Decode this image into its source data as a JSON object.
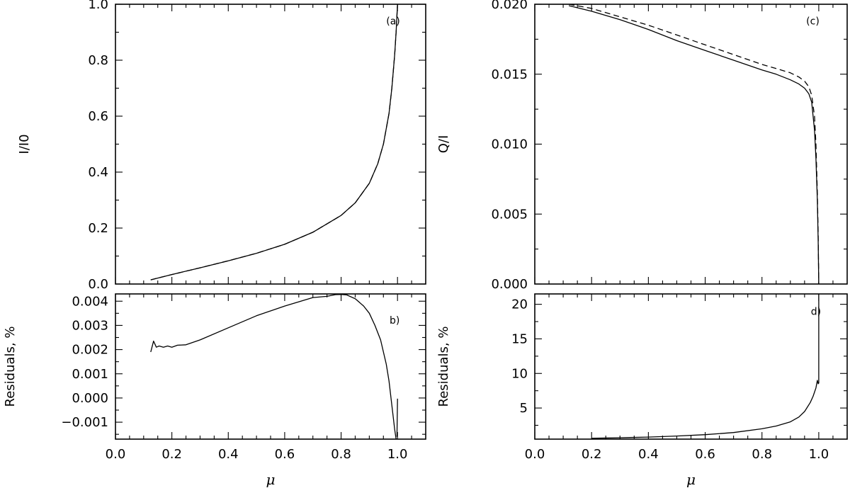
{
  "chart_data": [
    {
      "id": "a",
      "type": "line",
      "label": "(a)",
      "xlabel": "",
      "ylabel": "I/I0",
      "xlim": [
        0,
        1.1
      ],
      "ylim": [
        0,
        1.0
      ],
      "xticks": [
        0.0,
        0.2,
        0.4,
        0.6,
        0.8,
        1.0
      ],
      "xticklabels": [],
      "yticks": [
        0.0,
        0.2,
        0.4,
        0.6,
        0.8,
        1.0
      ],
      "yticklabels": [
        "0.0",
        "0.2",
        "0.4",
        "0.6",
        "0.8",
        "1.0"
      ],
      "series": [
        {
          "style": "solid",
          "x": [
            0.125,
            0.2,
            0.3,
            0.4,
            0.5,
            0.6,
            0.7,
            0.8,
            0.85,
            0.9,
            0.93,
            0.95,
            0.97,
            0.98,
            0.99,
            0.995,
            1.0
          ],
          "y": [
            0.015,
            0.034,
            0.058,
            0.083,
            0.11,
            0.142,
            0.185,
            0.245,
            0.29,
            0.36,
            0.43,
            0.5,
            0.61,
            0.7,
            0.82,
            0.9,
            1.0
          ]
        },
        {
          "style": "dashed",
          "x": [
            0.125,
            0.2,
            0.3,
            0.4,
            0.5,
            0.6,
            0.7,
            0.8,
            0.85,
            0.9,
            0.93,
            0.95,
            0.97,
            0.98,
            0.99,
            0.995,
            1.0
          ],
          "y": [
            0.015,
            0.034,
            0.058,
            0.083,
            0.11,
            0.142,
            0.185,
            0.245,
            0.29,
            0.36,
            0.43,
            0.5,
            0.61,
            0.7,
            0.82,
            0.9,
            1.0
          ]
        }
      ]
    },
    {
      "id": "b",
      "type": "line",
      "label": "b)",
      "xlabel": "μ",
      "ylabel": "Residuals, %",
      "xlim": [
        0,
        1.1
      ],
      "ylim": [
        -0.0017,
        0.0043
      ],
      "xticks": [
        0.0,
        0.2,
        0.4,
        0.6,
        0.8,
        1.0
      ],
      "xticklabels": [
        "0.0",
        "0.2",
        "0.4",
        "0.6",
        "0.8",
        "1.0"
      ],
      "yticks": [
        -0.001,
        0.0,
        0.001,
        0.002,
        0.003,
        0.004
      ],
      "yticklabels": [
        "−0.001",
        "0.000",
        "0.001",
        "0.002",
        "0.003",
        "0.004"
      ],
      "series": [
        {
          "style": "solid",
          "x": [
            0.125,
            0.135,
            0.145,
            0.155,
            0.17,
            0.185,
            0.2,
            0.22,
            0.25,
            0.3,
            0.4,
            0.5,
            0.6,
            0.7,
            0.75,
            0.78,
            0.8,
            0.82,
            0.85,
            0.88,
            0.9,
            0.92,
            0.94,
            0.96,
            0.97,
            0.98,
            0.99,
            0.995
          ],
          "y": [
            0.0019,
            0.00235,
            0.0021,
            0.00215,
            0.0021,
            0.00215,
            0.0021,
            0.00218,
            0.0022,
            0.0024,
            0.0029,
            0.0034,
            0.0038,
            0.00415,
            0.0042,
            0.00427,
            0.00428,
            0.00426,
            0.0041,
            0.0038,
            0.0035,
            0.003,
            0.0024,
            0.0014,
            0.0007,
            -0.0003,
            -0.0013,
            -0.0017
          ]
        },
        {
          "style": "solid",
          "x": [
            0.998,
            1.0
          ],
          "y": [
            -0.0016,
            -3e-05
          ]
        }
      ]
    },
    {
      "id": "c",
      "type": "line",
      "label": "(c)",
      "xlabel": "",
      "ylabel": "Q/I",
      "xlim": [
        0,
        1.1
      ],
      "ylim": [
        0,
        0.02
      ],
      "xticks": [
        0.0,
        0.2,
        0.4,
        0.6,
        0.8,
        1.0
      ],
      "xticklabels": [],
      "yticks": [
        0.0,
        0.005,
        0.01,
        0.015,
        0.02
      ],
      "yticklabels": [
        "0.000",
        "0.005",
        "0.010",
        "0.015",
        "0.020"
      ],
      "series": [
        {
          "style": "solid",
          "x": [
            0.12,
            0.2,
            0.3,
            0.4,
            0.5,
            0.6,
            0.7,
            0.8,
            0.85,
            0.9,
            0.93,
            0.95,
            0.965,
            0.975,
            0.985,
            0.99,
            0.995,
            0.998,
            1.0
          ],
          "y": [
            0.0199,
            0.0195,
            0.0189,
            0.0182,
            0.0174,
            0.0167,
            0.016,
            0.0153,
            0.015,
            0.0146,
            0.0143,
            0.014,
            0.0136,
            0.013,
            0.011,
            0.009,
            0.006,
            0.003,
            0.0
          ]
        },
        {
          "style": "dashed",
          "x": [
            0.12,
            0.2,
            0.3,
            0.4,
            0.5,
            0.6,
            0.7,
            0.8,
            0.85,
            0.9,
            0.93,
            0.95,
            0.965,
            0.975,
            0.985,
            0.99,
            0.995,
            0.998,
            1.0
          ],
          "y": [
            0.02,
            0.0197,
            0.0191,
            0.0185,
            0.0178,
            0.0171,
            0.0164,
            0.0157,
            0.0154,
            0.0151,
            0.0148,
            0.0145,
            0.0141,
            0.0135,
            0.012,
            0.01,
            0.0065,
            0.0035,
            0.0
          ]
        }
      ]
    },
    {
      "id": "d",
      "type": "line",
      "label": "d)",
      "xlabel": "μ",
      "ylabel": "Residuals, %",
      "xlim": [
        0,
        1.1
      ],
      "ylim": [
        0.5,
        21.5
      ],
      "xticks": [
        0.0,
        0.2,
        0.4,
        0.6,
        0.8,
        1.0
      ],
      "xticklabels": [
        "0.0",
        "0.2",
        "0.4",
        "0.6",
        "0.8",
        "1.0"
      ],
      "yticks": [
        5,
        10,
        15,
        20
      ],
      "yticklabels": [
        "5",
        "10",
        "15",
        "20"
      ],
      "series": [
        {
          "style": "solid",
          "x": [
            0.2,
            0.3,
            0.4,
            0.5,
            0.6,
            0.7,
            0.8,
            0.85,
            0.9,
            0.93,
            0.95,
            0.97,
            0.98,
            0.99,
            0.995,
            0.998,
            1.0,
            1.0
          ],
          "y": [
            0.62,
            0.7,
            0.8,
            0.95,
            1.15,
            1.45,
            2.0,
            2.4,
            3.0,
            3.7,
            4.5,
            5.8,
            6.7,
            7.9,
            9.0,
            8.5,
            8.6,
            21.5
          ]
        }
      ]
    }
  ]
}
